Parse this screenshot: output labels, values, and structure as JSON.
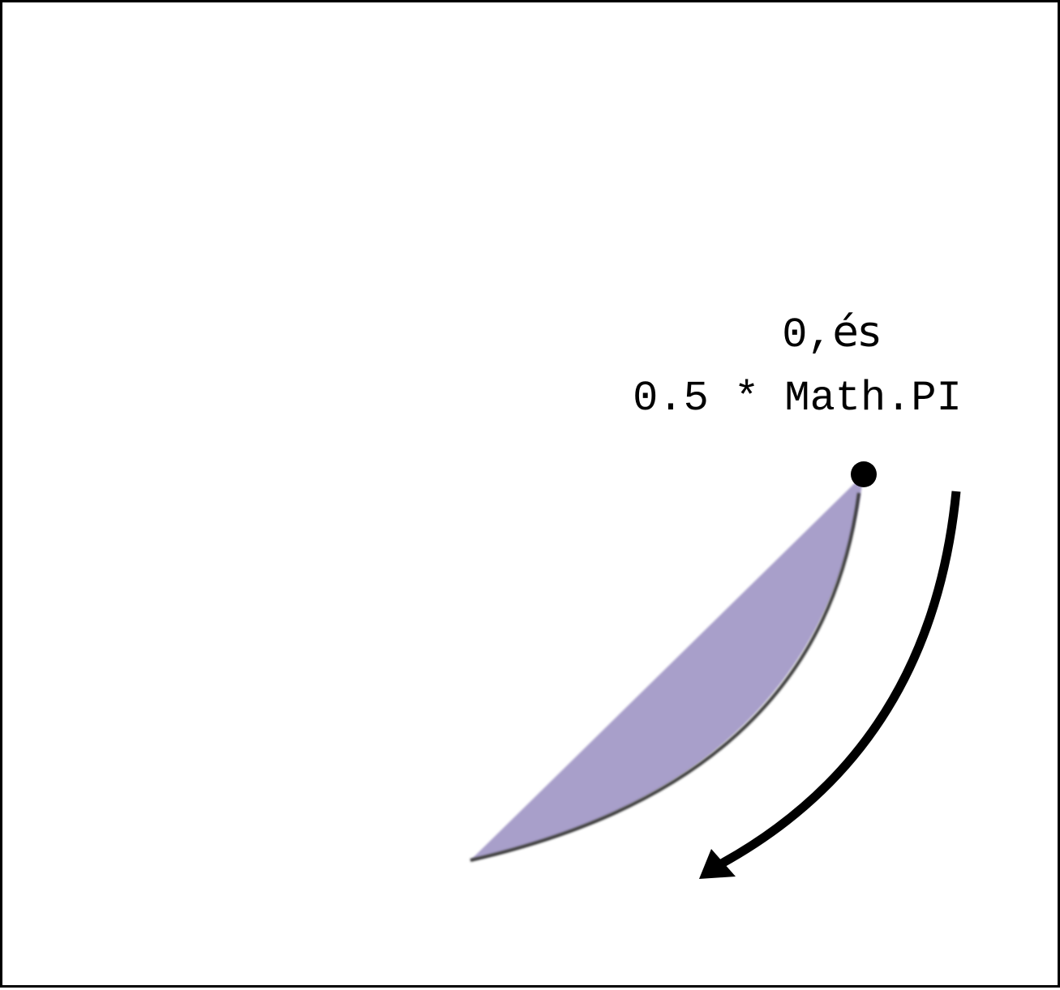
{
  "labels": {
    "start_number": "0,",
    "start_word": "és",
    "end_angle_expression": "0.5 * Math.PI"
  },
  "colors": {
    "segment_fill": "#a89fca",
    "segment_edge": "#3a3a3a",
    "marker": "#000000",
    "arrow": "#000000"
  }
}
